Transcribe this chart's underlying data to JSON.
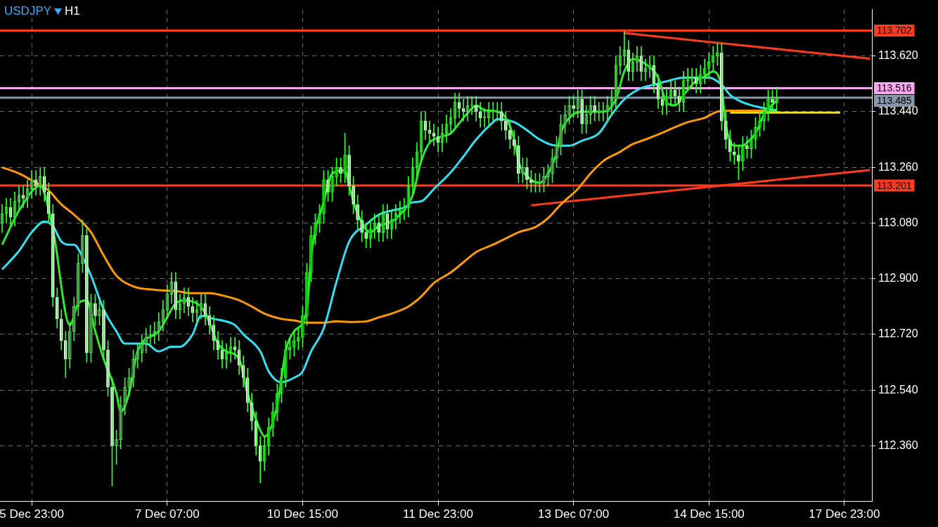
{
  "chart_data": {
    "type": "candlestick",
    "title": "USDJPY",
    "subtitle": "H1",
    "categories": [
      null,
      null,
      null,
      null,
      null,
      null,
      null,
      "5 Dec 23:00",
      null,
      null,
      null,
      null,
      null,
      null,
      null,
      null,
      null,
      null,
      null,
      null,
      null,
      null,
      null,
      null,
      null,
      null,
      null,
      null,
      null,
      null,
      null,
      null,
      null,
      null,
      null,
      null,
      null,
      null,
      null,
      "7 Dec 07:00",
      null,
      null,
      null,
      null,
      null,
      null,
      null,
      null,
      null,
      null,
      null,
      null,
      null,
      null,
      null,
      null,
      null,
      null,
      null,
      null,
      null,
      null,
      null,
      null,
      null,
      null,
      null,
      null,
      null,
      null,
      null,
      "10 Dec 15:00",
      null,
      null,
      null,
      null,
      null,
      null,
      null,
      null,
      null,
      null,
      null,
      null,
      null,
      null,
      null,
      null,
      null,
      null,
      null,
      null,
      null,
      null,
      null,
      null,
      null,
      null,
      null,
      null,
      null,
      null,
      null,
      "11 Dec 23:00",
      null,
      null,
      null,
      null,
      null,
      null,
      null,
      null,
      null,
      null,
      null,
      null,
      null,
      null,
      null,
      null,
      null,
      null,
      null,
      null,
      null,
      null,
      null,
      null,
      null,
      null,
      null,
      null,
      null,
      null,
      null,
      "13 Dec 07:00",
      null,
      null,
      null,
      null,
      null,
      null,
      null,
      null,
      null,
      null,
      null,
      null,
      null,
      null,
      null,
      null,
      null,
      null,
      null,
      null,
      null,
      null,
      null,
      null,
      null,
      null,
      null,
      null,
      null,
      null,
      null,
      "14 Dec 15:00",
      null,
      null,
      null,
      null,
      null,
      null,
      null,
      null,
      null,
      null,
      null,
      null,
      null,
      null,
      null,
      null,
      null,
      null,
      null,
      null,
      null,
      null,
      null,
      null,
      null,
      null,
      null,
      null,
      null,
      null,
      null,
      "17 Dec 23:00",
      null,
      null,
      null,
      null,
      null,
      null
    ],
    "ohlc": [
      [
        113.08,
        113.14,
        113.05,
        113.11
      ],
      [
        113.11,
        113.16,
        113.08,
        113.13
      ],
      [
        113.13,
        113.16,
        113.07,
        113.1
      ],
      [
        113.1,
        113.18,
        113.07,
        113.15
      ],
      [
        113.15,
        113.2,
        113.12,
        113.17
      ],
      [
        113.17,
        113.2,
        113.13,
        113.16
      ],
      [
        113.16,
        113.22,
        113.13,
        113.19
      ],
      [
        113.19,
        113.25,
        113.16,
        113.22
      ],
      [
        113.22,
        113.25,
        113.17,
        113.2
      ],
      [
        113.2,
        113.26,
        113.17,
        113.23
      ],
      [
        113.23,
        113.26,
        113.15,
        113.18
      ],
      [
        113.18,
        113.21,
        113.08,
        113.11
      ],
      [
        113.11,
        113.14,
        112.81,
        112.84
      ],
      [
        112.84,
        112.87,
        112.74,
        112.77
      ],
      [
        112.77,
        112.8,
        112.67,
        112.7
      ],
      [
        112.7,
        112.73,
        112.58,
        112.64
      ],
      [
        112.64,
        112.76,
        112.61,
        112.73
      ],
      [
        112.73,
        112.84,
        112.7,
        112.81
      ],
      [
        112.81,
        112.98,
        112.78,
        112.95
      ],
      [
        112.95,
        113.09,
        112.92,
        113.04
      ],
      [
        113.04,
        113.07,
        112.63,
        112.66
      ],
      [
        112.66,
        112.85,
        112.63,
        112.82
      ],
      [
        112.82,
        112.85,
        112.75,
        112.78
      ],
      [
        112.78,
        112.83,
        112.75,
        112.8
      ],
      [
        112.8,
        112.83,
        112.64,
        112.67
      ],
      [
        112.67,
        112.7,
        112.52,
        112.55
      ],
      [
        112.55,
        112.58,
        112.23,
        112.36
      ],
      [
        112.36,
        112.41,
        112.3,
        112.38
      ],
      [
        112.38,
        112.52,
        112.35,
        112.49
      ],
      [
        112.49,
        112.58,
        112.46,
        112.55
      ],
      [
        112.55,
        112.61,
        112.52,
        112.58
      ],
      [
        112.58,
        112.67,
        112.55,
        112.64
      ],
      [
        112.64,
        112.69,
        112.61,
        112.66
      ],
      [
        112.66,
        112.72,
        112.63,
        112.69
      ],
      [
        112.69,
        112.74,
        112.66,
        112.71
      ],
      [
        112.71,
        112.75,
        112.68,
        112.72
      ],
      [
        112.72,
        112.76,
        112.69,
        112.73
      ],
      [
        112.73,
        112.79,
        112.7,
        112.76
      ],
      [
        112.76,
        112.83,
        112.73,
        112.8
      ],
      [
        112.8,
        112.88,
        112.77,
        112.85
      ],
      [
        112.85,
        112.92,
        112.82,
        112.89
      ],
      [
        112.89,
        112.92,
        112.77,
        112.8
      ],
      [
        112.8,
        112.85,
        112.77,
        112.82
      ],
      [
        112.82,
        112.87,
        112.79,
        112.84
      ],
      [
        112.84,
        112.87,
        112.78,
        112.81
      ],
      [
        112.81,
        112.84,
        112.76,
        112.79
      ],
      [
        112.79,
        112.83,
        112.76,
        112.8
      ],
      [
        112.8,
        112.85,
        112.77,
        112.82
      ],
      [
        112.82,
        112.85,
        112.75,
        112.78
      ],
      [
        112.78,
        112.81,
        112.72,
        112.75
      ],
      [
        112.75,
        112.78,
        112.67,
        112.7
      ],
      [
        112.7,
        112.73,
        112.64,
        112.67
      ],
      [
        112.67,
        112.7,
        112.61,
        112.64
      ],
      [
        112.64,
        112.69,
        112.61,
        112.66
      ],
      [
        112.66,
        112.71,
        112.63,
        112.68
      ],
      [
        112.68,
        112.71,
        112.64,
        112.67
      ],
      [
        112.67,
        112.7,
        112.59,
        112.62
      ],
      [
        112.62,
        112.65,
        112.55,
        112.58
      ],
      [
        112.58,
        112.61,
        112.47,
        112.5
      ],
      [
        112.5,
        112.53,
        112.41,
        112.44
      ],
      [
        112.44,
        112.47,
        112.33,
        112.36
      ],
      [
        112.36,
        112.39,
        112.24,
        112.31
      ],
      [
        112.31,
        112.39,
        112.28,
        112.36
      ],
      [
        112.36,
        112.45,
        112.33,
        112.42
      ],
      [
        112.42,
        112.5,
        112.39,
        112.47
      ],
      [
        112.47,
        112.56,
        112.44,
        112.53
      ],
      [
        112.53,
        112.61,
        112.5,
        112.58
      ],
      [
        112.58,
        112.7,
        112.55,
        112.67
      ],
      [
        112.67,
        112.71,
        112.64,
        112.68
      ],
      [
        112.68,
        112.73,
        112.65,
        112.7
      ],
      [
        112.7,
        112.74,
        112.67,
        112.71
      ],
      [
        112.71,
        112.81,
        112.68,
        112.78
      ],
      [
        112.78,
        112.95,
        112.75,
        112.92
      ],
      [
        112.92,
        113.07,
        112.89,
        113.04
      ],
      [
        113.04,
        113.11,
        113.01,
        113.08
      ],
      [
        113.08,
        113.14,
        113.05,
        113.11
      ],
      [
        113.11,
        113.25,
        113.08,
        113.22
      ],
      [
        113.22,
        113.25,
        113.15,
        113.18
      ],
      [
        113.18,
        113.26,
        113.15,
        113.23
      ],
      [
        113.23,
        113.29,
        113.2,
        113.26
      ],
      [
        113.26,
        113.29,
        113.21,
        113.24
      ],
      [
        113.24,
        113.37,
        113.21,
        113.3
      ],
      [
        113.3,
        113.33,
        113.17,
        113.2
      ],
      [
        113.2,
        113.23,
        113.11,
        113.14
      ],
      [
        113.14,
        113.17,
        113.06,
        113.09
      ],
      [
        113.09,
        113.12,
        113.02,
        113.05
      ],
      [
        113.05,
        113.08,
        113.0,
        113.03
      ],
      [
        113.03,
        113.09,
        113.0,
        113.06
      ],
      [
        113.06,
        113.11,
        113.03,
        113.08
      ],
      [
        113.08,
        113.11,
        113.02,
        113.05
      ],
      [
        113.05,
        113.14,
        113.02,
        113.11
      ],
      [
        113.11,
        113.14,
        113.03,
        113.06
      ],
      [
        113.06,
        113.12,
        113.03,
        113.09
      ],
      [
        113.09,
        113.14,
        113.06,
        113.11
      ],
      [
        113.11,
        113.15,
        113.08,
        113.12
      ],
      [
        113.12,
        113.16,
        113.09,
        113.13
      ],
      [
        113.13,
        113.23,
        113.1,
        113.2
      ],
      [
        113.2,
        113.29,
        113.17,
        113.26
      ],
      [
        113.26,
        113.34,
        113.23,
        113.31
      ],
      [
        113.31,
        113.44,
        113.28,
        113.41
      ],
      [
        113.41,
        113.44,
        113.35,
        113.38
      ],
      [
        113.38,
        113.41,
        113.34,
        113.37
      ],
      [
        113.37,
        113.4,
        113.33,
        113.36
      ],
      [
        113.36,
        113.39,
        113.31,
        113.34
      ],
      [
        113.34,
        113.4,
        113.31,
        113.37
      ],
      [
        113.37,
        113.43,
        113.34,
        113.4
      ],
      [
        113.4,
        113.45,
        113.37,
        113.42
      ],
      [
        113.42,
        113.5,
        113.39,
        113.47
      ],
      [
        113.47,
        113.5,
        113.42,
        113.45
      ],
      [
        113.45,
        113.48,
        113.41,
        113.44
      ],
      [
        113.44,
        113.49,
        113.41,
        113.46
      ],
      [
        113.46,
        113.49,
        113.43,
        113.46
      ],
      [
        113.46,
        113.49,
        113.41,
        113.44
      ],
      [
        113.44,
        113.47,
        113.39,
        113.42
      ],
      [
        113.42,
        113.45,
        113.39,
        113.42
      ],
      [
        113.42,
        113.47,
        113.39,
        113.44
      ],
      [
        113.44,
        113.47,
        113.41,
        113.44
      ],
      [
        113.44,
        113.47,
        113.41,
        113.44
      ],
      [
        113.44,
        113.47,
        113.38,
        113.41
      ],
      [
        113.41,
        113.44,
        113.35,
        113.38
      ],
      [
        113.38,
        113.41,
        113.32,
        113.35
      ],
      [
        113.35,
        113.38,
        113.3,
        113.33
      ],
      [
        113.33,
        113.36,
        113.21,
        113.24
      ],
      [
        113.24,
        113.29,
        113.21,
        113.26
      ],
      [
        113.26,
        113.29,
        113.19,
        113.22
      ],
      [
        113.22,
        113.25,
        113.18,
        113.21
      ],
      [
        113.21,
        113.24,
        113.18,
        113.21
      ],
      [
        113.21,
        113.24,
        113.18,
        113.21
      ],
      [
        113.21,
        113.26,
        113.18,
        113.23
      ],
      [
        113.23,
        113.27,
        113.2,
        113.24
      ],
      [
        113.24,
        113.32,
        113.21,
        113.29
      ],
      [
        113.29,
        113.36,
        113.26,
        113.33
      ],
      [
        113.33,
        113.43,
        113.3,
        113.4
      ],
      [
        113.4,
        113.46,
        113.37,
        113.43
      ],
      [
        113.43,
        113.49,
        113.4,
        113.46
      ],
      [
        113.46,
        113.49,
        113.42,
        113.45
      ],
      [
        113.45,
        113.51,
        113.42,
        113.48
      ],
      [
        113.48,
        113.51,
        113.37,
        113.4
      ],
      [
        113.4,
        113.46,
        113.37,
        113.43
      ],
      [
        113.43,
        113.49,
        113.4,
        113.46
      ],
      [
        113.46,
        113.49,
        113.41,
        113.44
      ],
      [
        113.44,
        113.47,
        113.41,
        113.44
      ],
      [
        113.44,
        113.47,
        113.41,
        113.44
      ],
      [
        113.44,
        113.49,
        113.41,
        113.46
      ],
      [
        113.46,
        113.51,
        113.43,
        113.48
      ],
      [
        113.48,
        113.62,
        113.45,
        113.59
      ],
      [
        113.59,
        113.65,
        113.56,
        113.62
      ],
      [
        113.62,
        113.7,
        113.59,
        113.64
      ],
      [
        113.64,
        113.67,
        113.54,
        113.57
      ],
      [
        113.57,
        113.63,
        113.54,
        113.6
      ],
      [
        113.6,
        113.65,
        113.57,
        113.62
      ],
      [
        113.62,
        113.65,
        113.54,
        113.57
      ],
      [
        113.57,
        113.61,
        113.54,
        113.58
      ],
      [
        113.58,
        113.62,
        113.55,
        113.59
      ],
      [
        113.59,
        113.62,
        113.5,
        113.53
      ],
      [
        113.53,
        113.56,
        113.45,
        113.48
      ],
      [
        113.48,
        113.51,
        113.43,
        113.46
      ],
      [
        113.46,
        113.52,
        113.43,
        113.49
      ],
      [
        113.49,
        113.54,
        113.46,
        113.51
      ],
      [
        113.51,
        113.54,
        113.46,
        113.49
      ],
      [
        113.49,
        113.52,
        113.44,
        113.47
      ],
      [
        113.47,
        113.57,
        113.44,
        113.54
      ],
      [
        113.54,
        113.58,
        113.51,
        113.55
      ],
      [
        113.55,
        113.58,
        113.52,
        113.55
      ],
      [
        113.55,
        113.58,
        113.5,
        113.53
      ],
      [
        113.53,
        113.59,
        113.5,
        113.56
      ],
      [
        113.56,
        113.61,
        113.53,
        113.58
      ],
      [
        113.58,
        113.63,
        113.55,
        113.6
      ],
      [
        113.6,
        113.65,
        113.57,
        113.62
      ],
      [
        113.62,
        113.66,
        113.59,
        113.63
      ],
      [
        113.63,
        113.66,
        113.38,
        113.41
      ],
      [
        113.41,
        113.44,
        113.32,
        113.35
      ],
      [
        113.35,
        113.38,
        113.28,
        113.31
      ],
      [
        113.31,
        113.34,
        113.27,
        113.3
      ],
      [
        113.3,
        113.33,
        113.22,
        113.28
      ],
      [
        113.28,
        113.36,
        113.25,
        113.33
      ],
      [
        113.33,
        113.36,
        113.29,
        113.32
      ],
      [
        113.32,
        113.38,
        113.29,
        113.35
      ],
      [
        113.35,
        113.42,
        113.32,
        113.39
      ],
      [
        113.39,
        113.44,
        113.36,
        113.41
      ],
      [
        113.41,
        113.47,
        113.38,
        113.44
      ],
      [
        113.44,
        113.51,
        113.41,
        113.48
      ],
      [
        113.48,
        113.51,
        113.44,
        113.47
      ],
      [
        113.47,
        113.52,
        113.44,
        113.48
      ],
      null,
      null,
      null,
      null,
      null,
      null,
      null,
      null,
      null,
      null,
      null,
      null,
      null,
      null,
      null,
      null,
      null,
      null,
      null,
      null,
      null,
      null
    ],
    "series": [
      {
        "type": "line",
        "color": "#2ee82e",
        "values": [
          113.01,
          null,
          null,
          null,
          113.12,
          null,
          null,
          null,
          null,
          113.2,
          null,
          null,
          113.06,
          null,
          null,
          null,
          112.75,
          null,
          112.82,
          null,
          112.83,
          null,
          112.73,
          null,
          112.64,
          null,
          null,
          112.53,
          112.47,
          null,
          112.53,
          null,
          112.665,
          null,
          null,
          null,
          null,
          112.73,
          null,
          null,
          null,
          112.82,
          null,
          112.83,
          null,
          null,
          112.82,
          null,
          112.79,
          null,
          null,
          112.69,
          null,
          112.665,
          null,
          null,
          112.64,
          null,
          112.53,
          null,
          null,
          112.41,
          112.39,
          null,
          null,
          112.49,
          null,
          112.665,
          null,
          112.73,
          null,
          null,
          112.8,
          112.97,
          null,
          null,
          113.15,
          null,
          113.24,
          null,
          null,
          113.25,
          113.2,
          null,
          113.11,
          null,
          null,
          113.05,
          null,
          113.07,
          null,
          null,
          113.085,
          null,
          113.107,
          null,
          null,
          113.17,
          null,
          113.28,
          null,
          113.34,
          113.35,
          null,
          113.36,
          null,
          113.37,
          null,
          null,
          113.42,
          null,
          113.45,
          113.46,
          null,
          113.445,
          null,
          null,
          113.44,
          null,
          113.42,
          null,
          113.35,
          113.28,
          null,
          null,
          113.22,
          null,
          113.21,
          null,
          113.24,
          null,
          113.306,
          113.37,
          null,
          113.42,
          null,
          null,
          113.44,
          null,
          null,
          null,
          113.44,
          113.44,
          null,
          null,
          113.48,
          null,
          113.57,
          null,
          113.61,
          null,
          null,
          113.594,
          null,
          null,
          113.55,
          null,
          113.47,
          null,
          113.46,
          null,
          113.494,
          null,
          null,
          113.54,
          null,
          113.554,
          null,
          113.57,
          null,
          113.516,
          113.395,
          null,
          113.33,
          null,
          113.33,
          113.34,
          null,
          113.37,
          null,
          113.43,
          null,
          null,
          113.476,
          null,
          null,
          null,
          null,
          null,
          null,
          null,
          null,
          null,
          null,
          null,
          null,
          null,
          null,
          null,
          null,
          null,
          null,
          null,
          null,
          null,
          null
        ]
      },
      {
        "type": "line",
        "color": "#33e0f0",
        "values": [
          112.93,
          null,
          null,
          null,
          112.99,
          null,
          null,
          113.05,
          null,
          null,
          113.085,
          null,
          113.07,
          null,
          113.02,
          null,
          113.01,
          113.01,
          null,
          112.97,
          null,
          112.91,
          null,
          null,
          112.8,
          null,
          null,
          112.73,
          null,
          112.69,
          null,
          112.69,
          null,
          null,
          112.69,
          null,
          null,
          112.665,
          null,
          null,
          112.68,
          null,
          112.68,
          null,
          null,
          112.72,
          null,
          112.78,
          null,
          null,
          112.77,
          null,
          112.765,
          null,
          null,
          112.75,
          null,
          112.72,
          null,
          null,
          null,
          112.665,
          null,
          112.6,
          null,
          null,
          112.565,
          null,
          null,
          112.58,
          null,
          112.6,
          null,
          112.665,
          null,
          null,
          112.74,
          null,
          null,
          112.89,
          null,
          null,
          113.02,
          null,
          null,
          null,
          113.075,
          null,
          null,
          113.107,
          null,
          null,
          113.12,
          null,
          null,
          113.13,
          null,
          113.147,
          null,
          113.15,
          null,
          null,
          113.19,
          null,
          null,
          null,
          113.244,
          null,
          null,
          113.295,
          null,
          null,
          113.35,
          null,
          null,
          null,
          113.406,
          113.416,
          null,
          null,
          null,
          113.406,
          null,
          null,
          113.38,
          null,
          null,
          113.35,
          null,
          null,
          null,
          113.33,
          null,
          null,
          113.33,
          null,
          null,
          113.346,
          null,
          null,
          null,
          113.37,
          null,
          null,
          113.43,
          null,
          null,
          113.48,
          null,
          null,
          null,
          113.516,
          null,
          null,
          113.527,
          null,
          null,
          113.538,
          null,
          null,
          null,
          113.55,
          null,
          null,
          113.55,
          null,
          null,
          113.55,
          null,
          null,
          113.527,
          null,
          113.494,
          null,
          null,
          113.47,
          null,
          null,
          null,
          113.454,
          null,
          null,
          null,
          113.445,
          null,
          null,
          null,
          null,
          null,
          null,
          null,
          null,
          null,
          null,
          null,
          null,
          null,
          null,
          null,
          null,
          null,
          null,
          null,
          null,
          null,
          null
        ]
      },
      {
        "type": "line",
        "color": "#ff9900",
        "values": [
          113.26,
          null,
          null,
          null,
          113.24,
          null,
          null,
          113.218,
          null,
          null,
          null,
          113.185,
          null,
          null,
          113.14,
          null,
          null,
          113.107,
          null,
          null,
          null,
          113.05,
          null,
          null,
          112.975,
          null,
          null,
          112.91,
          null,
          null,
          null,
          112.875,
          null,
          null,
          null,
          null,
          112.864,
          null,
          null,
          null,
          null,
          112.86,
          null,
          null,
          null,
          112.853,
          null,
          null,
          null,
          112.853,
          null,
          null,
          112.846,
          null,
          null,
          null,
          112.83,
          null,
          null,
          112.81,
          null,
          null,
          112.787,
          null,
          null,
          null,
          112.77,
          null,
          null,
          112.765,
          null,
          null,
          112.758,
          null,
          null,
          null,
          112.758,
          null,
          null,
          112.762,
          null,
          null,
          112.76,
          null,
          null,
          null,
          112.762,
          null,
          null,
          112.775,
          null,
          null,
          112.787,
          null,
          null,
          null,
          112.81,
          null,
          null,
          112.842,
          null,
          null,
          112.886,
          null,
          null,
          null,
          112.92,
          null,
          null,
          112.953,
          null,
          null,
          112.986,
          null,
          null,
          null,
          113.01,
          null,
          null,
          113.03,
          null,
          null,
          113.05,
          null,
          null,
          null,
          113.067,
          null,
          null,
          113.096,
          null,
          null,
          113.14,
          null,
          null,
          null,
          113.19,
          null,
          null,
          113.24,
          null,
          null,
          113.28,
          null,
          null,
          null,
          113.31,
          null,
          null,
          113.335,
          null,
          null,
          113.35,
          null,
          null,
          null,
          113.372,
          null,
          null,
          113.39,
          null,
          null,
          113.406,
          null,
          null,
          null,
          113.42,
          null,
          null,
          113.44,
          null,
          null,
          113.443,
          null,
          null,
          null,
          null,
          113.443,
          null,
          null,
          null,
          null,
          null,
          113.443,
          null,
          null,
          null,
          null,
          null,
          null,
          null,
          null,
          null,
          null,
          null,
          null,
          null,
          null,
          null,
          null,
          null,
          null,
          null,
          null,
          null,
          null
        ]
      },
      {
        "type": "line",
        "color": "#ff3b1f",
        "values": [
          null,
          null,
          null,
          null,
          null,
          null,
          null,
          null,
          null,
          null,
          null,
          null,
          null,
          null,
          null,
          null,
          null,
          null,
          null,
          null,
          null,
          null,
          null,
          null,
          null,
          null,
          null,
          null,
          null,
          null,
          null,
          null,
          null,
          null,
          null,
          null,
          null,
          null,
          null,
          null,
          null,
          null,
          null,
          null,
          null,
          null,
          null,
          null,
          null,
          null,
          null,
          null,
          null,
          null,
          null,
          null,
          null,
          null,
          null,
          null,
          null,
          null,
          null,
          null,
          null,
          null,
          null,
          null,
          null,
          null,
          null,
          null,
          null,
          null,
          null,
          null,
          null,
          null,
          null,
          null,
          null,
          null,
          null,
          null,
          null,
          null,
          null,
          null,
          null,
          null,
          null,
          null,
          null,
          null,
          null,
          null,
          null,
          null,
          null,
          null,
          null,
          null,
          null,
          null,
          null,
          null,
          null,
          null,
          null,
          null,
          null,
          null,
          null,
          null,
          null,
          null,
          null,
          null,
          null,
          null,
          null,
          null,
          null,
          null,
          null,
          null,
          null,
          null,
          null,
          null,
          null,
          null,
          null,
          null,
          null,
          null,
          null,
          null,
          null,
          null,
          null,
          null,
          null,
          null,
          null,
          null,
          null,
          113.694,
          null,
          null,
          null,
          null,
          null,
          null,
          null,
          null,
          null,
          null,
          null,
          null,
          null,
          null,
          null,
          null,
          null,
          null,
          null,
          null,
          null,
          null,
          null,
          null,
          null,
          null,
          null,
          null,
          null,
          null,
          null,
          null,
          null,
          null,
          null,
          null,
          null,
          null,
          null,
          null,
          null,
          null,
          null,
          null,
          null,
          null,
          null,
          null,
          null,
          null,
          null,
          null,
          null,
          null,
          null,
          null,
          null,
          113.611
        ]
      },
      {
        "type": "line",
        "color": "#ff3b1f",
        "values": [
          null,
          null,
          null,
          null,
          null,
          null,
          null,
          null,
          null,
          null,
          null,
          null,
          null,
          null,
          null,
          null,
          null,
          null,
          null,
          null,
          null,
          null,
          null,
          null,
          null,
          null,
          null,
          null,
          null,
          null,
          null,
          null,
          null,
          null,
          null,
          null,
          null,
          null,
          null,
          null,
          null,
          null,
          null,
          null,
          null,
          null,
          null,
          null,
          null,
          null,
          null,
          null,
          null,
          null,
          null,
          null,
          null,
          null,
          null,
          null,
          null,
          null,
          null,
          null,
          null,
          null,
          null,
          null,
          null,
          null,
          null,
          null,
          null,
          null,
          null,
          null,
          null,
          null,
          null,
          null,
          null,
          null,
          null,
          null,
          null,
          null,
          null,
          null,
          null,
          null,
          null,
          null,
          null,
          null,
          null,
          null,
          null,
          null,
          null,
          null,
          null,
          null,
          null,
          null,
          null,
          null,
          null,
          null,
          null,
          null,
          null,
          null,
          null,
          null,
          null,
          null,
          null,
          null,
          null,
          null,
          null,
          null,
          null,
          null,
          null,
          113.137,
          null,
          null,
          null,
          null,
          null,
          null,
          null,
          null,
          null,
          null,
          null,
          null,
          null,
          null,
          null,
          null,
          null,
          null,
          null,
          null,
          null,
          null,
          null,
          null,
          null,
          null,
          null,
          null,
          null,
          null,
          null,
          null,
          null,
          null,
          null,
          null,
          null,
          null,
          null,
          null,
          null,
          null,
          null,
          null,
          null,
          null,
          null,
          null,
          null,
          null,
          null,
          null,
          null,
          null,
          null,
          null,
          null,
          null,
          null,
          null,
          null,
          null,
          null,
          null,
          null,
          null,
          null,
          null,
          null,
          null,
          null,
          null,
          null,
          null,
          null,
          null,
          null,
          null,
          null,
          113.251
        ]
      },
      {
        "type": "line",
        "color": "#e8e800",
        "values": [
          null,
          null,
          null,
          null,
          null,
          null,
          null,
          null,
          null,
          null,
          null,
          null,
          null,
          null,
          null,
          null,
          null,
          null,
          null,
          null,
          null,
          null,
          null,
          null,
          null,
          null,
          null,
          null,
          null,
          null,
          null,
          null,
          null,
          null,
          null,
          null,
          null,
          null,
          null,
          null,
          null,
          null,
          null,
          null,
          null,
          null,
          null,
          null,
          null,
          null,
          null,
          null,
          null,
          null,
          null,
          null,
          null,
          null,
          null,
          null,
          null,
          null,
          null,
          null,
          null,
          null,
          null,
          null,
          null,
          null,
          null,
          null,
          null,
          null,
          null,
          null,
          null,
          null,
          null,
          null,
          null,
          null,
          null,
          null,
          null,
          null,
          null,
          null,
          null,
          null,
          null,
          null,
          null,
          null,
          null,
          null,
          null,
          null,
          null,
          null,
          null,
          null,
          null,
          null,
          null,
          null,
          null,
          null,
          null,
          null,
          null,
          null,
          null,
          null,
          null,
          null,
          null,
          null,
          null,
          null,
          null,
          null,
          null,
          null,
          null,
          null,
          null,
          null,
          null,
          null,
          null,
          null,
          null,
          null,
          null,
          null,
          null,
          null,
          null,
          null,
          null,
          null,
          null,
          null,
          null,
          null,
          null,
          null,
          null,
          null,
          null,
          null,
          null,
          null,
          null,
          null,
          null,
          null,
          null,
          null,
          null,
          null,
          null,
          null,
          null,
          null,
          null,
          null,
          null,
          null,
          null,
          null,
          113.437,
          null,
          null,
          null,
          null,
          null,
          null,
          null,
          null,
          null,
          null,
          null,
          null,
          null,
          null,
          null,
          null,
          null,
          null,
          null,
          null,
          null,
          null,
          null,
          null,
          null,
          113.437,
          null,
          null,
          null,
          null,
          null,
          null,
          null
        ]
      }
    ],
    "ylim": [
      112.18,
      113.77
    ],
    "yticks": [
      {
        "value": 112.36,
        "label": "112.360"
      },
      {
        "value": 112.54,
        "label": "112.540"
      },
      {
        "value": 112.72,
        "label": "112.720"
      },
      {
        "value": 112.9,
        "label": "112.900"
      },
      {
        "value": 113.08,
        "label": "113.080"
      },
      {
        "value": 113.26,
        "label": "113.260"
      },
      {
        "value": 113.44,
        "label": "113.440"
      },
      {
        "value": 113.62,
        "label": "113.620"
      }
    ],
    "ref_lines": [
      {
        "axis": "y",
        "value": 113.702,
        "label": "113.702",
        "color": "#ff3b1f"
      },
      {
        "axis": "y",
        "value": 113.516,
        "label": "113.516",
        "color": "#ffa6f2"
      },
      {
        "axis": "y",
        "value": 113.485,
        "label": "113.485",
        "color": "#8796a8"
      },
      {
        "axis": "y",
        "value": 113.201,
        "label": "113.201",
        "color": "#ff3b1f"
      }
    ],
    "grid": true
  }
}
